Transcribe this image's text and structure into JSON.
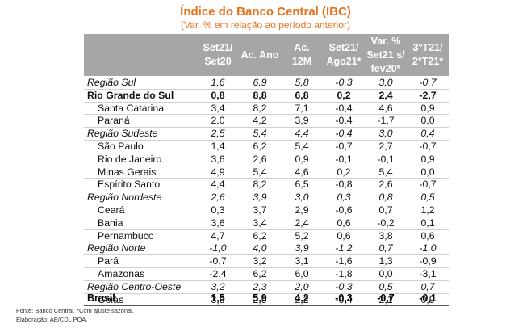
{
  "title": "Índice do Banco Central (IBC)",
  "subtitle": "(Var. % em relação ao período anterior)",
  "columns": [
    "Set21/\nSet20",
    "Ac. Ano",
    "Ac.\n12M",
    "Set21/\nAgo21*",
    "Var. %\nSet21 s/\nfev20*",
    "3°T21/\n2°T21*"
  ],
  "rows": [
    {
      "label": "Região Sul",
      "type": "region",
      "values": [
        "1,6",
        "6,9",
        "5,8",
        "-0,3",
        "3,0",
        "-0,7"
      ]
    },
    {
      "label": "Rio Grande do Sul",
      "type": "bold",
      "values": [
        "0,8",
        "8,8",
        "6,8",
        "0,2",
        "2,4",
        "-2,7"
      ]
    },
    {
      "label": "Santa Catarina",
      "type": "sub",
      "values": [
        "3,4",
        "8,2",
        "7,1",
        "-0,4",
        "4,6",
        "0,9"
      ]
    },
    {
      "label": "Paraná",
      "type": "sub",
      "values": [
        "2,0",
        "4,2",
        "3,9",
        "-0,4",
        "-1,7",
        "0,0"
      ]
    },
    {
      "label": "Região Sudeste",
      "type": "region",
      "values": [
        "2,5",
        "5,4",
        "4,4",
        "-0,4",
        "3,0",
        "0,4"
      ]
    },
    {
      "label": "São Paulo",
      "type": "sub",
      "values": [
        "1,4",
        "6,2",
        "5,4",
        "-0,7",
        "2,7",
        "-0,7"
      ]
    },
    {
      "label": "Rio de Janeiro",
      "type": "sub",
      "values": [
        "3,6",
        "2,6",
        "0,9",
        "-0,1",
        "-0,1",
        "0,9"
      ]
    },
    {
      "label": "Minas Gerais",
      "type": "sub",
      "values": [
        "4,9",
        "5,4",
        "4,6",
        "0,2",
        "5,4",
        "0,0"
      ]
    },
    {
      "label": "Espírito Santo",
      "type": "sub",
      "values": [
        "4,4",
        "8,2",
        "6,5",
        "-0,8",
        "2,6",
        "-0,7"
      ]
    },
    {
      "label": "Região Nordeste",
      "type": "region",
      "values": [
        "2,6",
        "3,9",
        "3,0",
        "0,3",
        "0,8",
        "0,5"
      ]
    },
    {
      "label": "Ceará",
      "type": "sub",
      "values": [
        "0,3",
        "3,7",
        "2,9",
        "-0,6",
        "0,7",
        "1,2"
      ]
    },
    {
      "label": "Bahia",
      "type": "sub",
      "values": [
        "3,6",
        "3,4",
        "2,4",
        "0,6",
        "-0,2",
        "0,1"
      ]
    },
    {
      "label": "Pernambuco",
      "type": "sub",
      "values": [
        "4,7",
        "6,2",
        "5,2",
        "0,6",
        "3,8",
        "0,6"
      ]
    },
    {
      "label": "Região Norte",
      "type": "region",
      "values": [
        "-1,0",
        "4,0",
        "3,9",
        "-1,2",
        "0,7",
        "-1,0"
      ]
    },
    {
      "label": "Pará",
      "type": "sub",
      "values": [
        "-0,7",
        "3,2",
        "3,1",
        "-1,6",
        "1,3",
        "-0,9"
      ]
    },
    {
      "label": "Amazonas",
      "type": "sub",
      "values": [
        "-2,4",
        "6,2",
        "6,0",
        "-1,8",
        "0,0",
        "-3,1"
      ]
    },
    {
      "label": "Região Centro-Oeste",
      "type": "region",
      "values": [
        "3,2",
        "2,3",
        "2,0",
        "-0,3",
        "0,5",
        "0,7"
      ]
    },
    {
      "label": "Goiás",
      "type": "sub",
      "values": [
        "3,8",
        "2,9",
        "2,2",
        "-0,4",
        "2,1",
        "0,9"
      ]
    }
  ],
  "total": {
    "label": "Brasil",
    "values": [
      "1,5",
      "5,9",
      "4,2",
      "-0,3",
      "-0,7",
      "-0,1"
    ]
  },
  "footnotes": [
    "Fonte: Banco Central. *Com ajuste sazonal.",
    "Elaboração: AE/CDL POA."
  ],
  "colors": {
    "title": "#e8731f",
    "header_bg": "#a6a6a6",
    "header_text": "#ffffff"
  }
}
